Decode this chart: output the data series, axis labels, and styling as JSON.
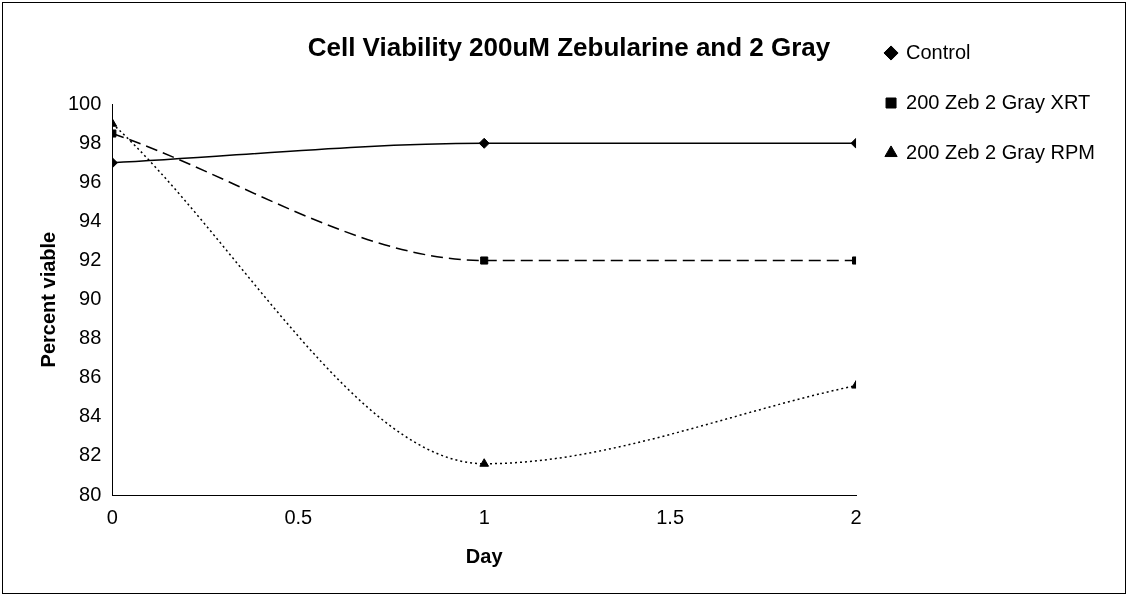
{
  "chart_data": {
    "type": "line",
    "title": "Cell Viability 200uM Zebularine and 2 Gray",
    "xlabel": "Day",
    "ylabel": "Percent viable",
    "x": [
      0,
      1,
      2
    ],
    "series": [
      {
        "name": "Control",
        "color": "#000000",
        "values": [
          97,
          98,
          98
        ],
        "marker": "diamond",
        "line_style": "solid"
      },
      {
        "name": "200 Zeb 2 Gray XRT",
        "color": "#000000",
        "values": [
          98.5,
          92,
          92
        ],
        "marker": "square",
        "line_style": "dashed"
      },
      {
        "name": "200 Zeb 2 Gray RPM",
        "color": "#000000",
        "values": [
          99,
          81.6,
          85.6
        ],
        "marker": "triangle",
        "line_style": "dotted"
      }
    ],
    "xlim": [
      0,
      2
    ],
    "xticks": [
      0,
      0.5,
      1,
      1.5,
      2
    ],
    "ylim": [
      80,
      100
    ],
    "yticks": [
      80,
      82,
      84,
      86,
      88,
      90,
      92,
      94,
      96,
      98,
      100
    ],
    "grid": false,
    "legend": "right"
  }
}
